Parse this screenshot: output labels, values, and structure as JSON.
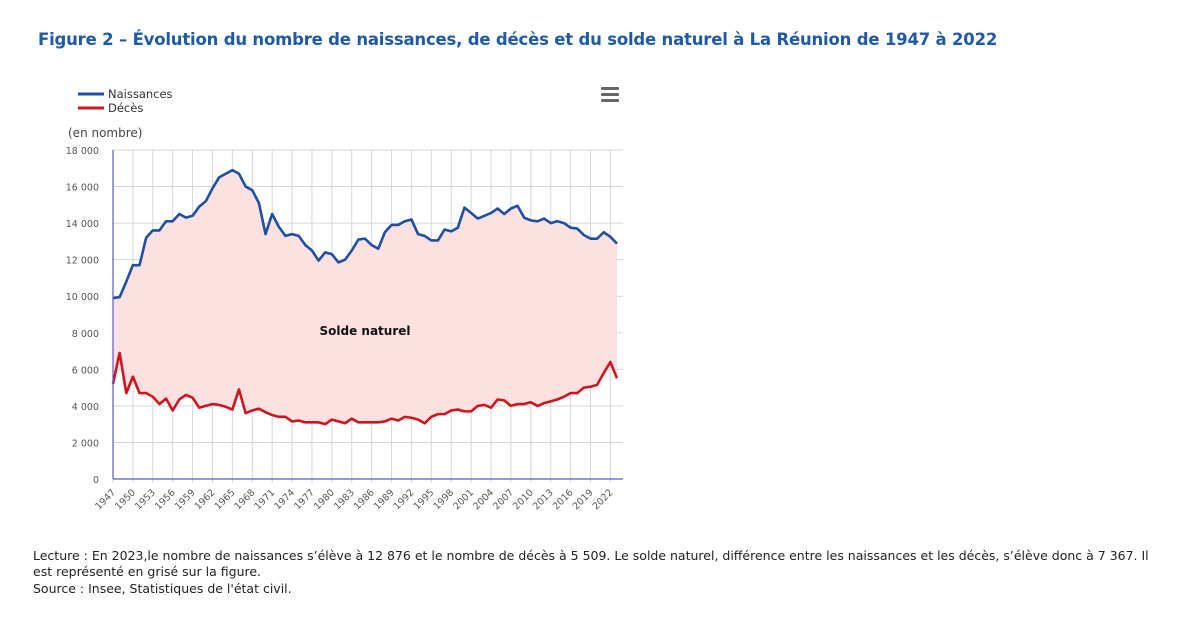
{
  "title": "Figure 2 – Évolution du nombre de naissances, de décès et du solde naturel à La Réunion de 1947 à 2022",
  "menu_icon": "hamburger-menu-icon",
  "note": "Lecture : En 2023,le nombre de naissances s’élève à 12 876 et le nombre de décès à 5 509. Le solde naturel, différence entre les naissances et les décès, s’élève donc à 7 367. Il est représenté en grisé sur la figure.",
  "source": "Source : Insee, Statistiques de l'état civil.",
  "chart_data": {
    "type": "line",
    "title": "Figure 2 – Évolution du nombre de naissances, de décès et du solde naturel à La Réunion de 1947 à 2022",
    "ylabel": "(en nombre)",
    "xlabel": "",
    "ylim": [
      0,
      18000
    ],
    "yticks": [
      "0",
      "2 000",
      "4 000",
      "6 000",
      "8 000",
      "10 000",
      "12 000",
      "14 000",
      "16 000",
      "18 000"
    ],
    "ytick_values": [
      0,
      2000,
      4000,
      6000,
      8000,
      10000,
      12000,
      14000,
      16000,
      18000
    ],
    "xticks": [
      "1947",
      "1950",
      "1953",
      "1956",
      "1959",
      "1962",
      "1965",
      "1968",
      "1971",
      "1974",
      "1977",
      "1980",
      "1983",
      "1986",
      "1989",
      "1992",
      "1995",
      "1998",
      "2001",
      "2004",
      "2007",
      "2010",
      "2013",
      "2016",
      "2019",
      "2022"
    ],
    "x_start": 1947,
    "x_end": 2023,
    "grid": true,
    "legend_position": "top-left",
    "area_label": "Solde naturel",
    "area_color": "#fde1e1",
    "series": [
      {
        "name": "Naissances",
        "color": "#1f4fa0",
        "values": [
          9900,
          9950,
          10800,
          11700,
          11700,
          13200,
          13600,
          13600,
          14100,
          14100,
          14500,
          14300,
          14400,
          14900,
          15200,
          15900,
          16500,
          16700,
          16900,
          16700,
          16000,
          15800,
          15100,
          13400,
          14500,
          13800,
          13300,
          13400,
          13300,
          12800,
          12500,
          11950,
          12400,
          12300,
          11850,
          12000,
          12500,
          13100,
          13150,
          12800,
          12600,
          13500,
          13900,
          13900,
          14100,
          14200,
          13400,
          13300,
          13050,
          13050,
          13650,
          13550,
          13750,
          14850,
          14550,
          14250,
          14400,
          14550,
          14800,
          14500,
          14800,
          14950,
          14300,
          14150,
          14100,
          14250,
          14000,
          14100,
          14000,
          13750,
          13700,
          13350,
          13150,
          13150,
          13500,
          13250,
          12876
        ]
      },
      {
        "name": "Décès",
        "color": "#d0141e",
        "values": [
          5200,
          6900,
          4700,
          5600,
          4700,
          4700,
          4500,
          4100,
          4400,
          3750,
          4350,
          4600,
          4450,
          3900,
          4000,
          4100,
          4050,
          3950,
          3800,
          4900,
          3600,
          3750,
          3850,
          3650,
          3500,
          3400,
          3400,
          3150,
          3200,
          3100,
          3100,
          3100,
          3000,
          3250,
          3150,
          3050,
          3300,
          3100,
          3100,
          3100,
          3100,
          3150,
          3300,
          3200,
          3400,
          3350,
          3250,
          3050,
          3400,
          3550,
          3550,
          3750,
          3800,
          3700,
          3700,
          4000,
          4050,
          3900,
          4350,
          4300,
          4000,
          4100,
          4100,
          4200,
          4000,
          4150,
          4250,
          4350,
          4500,
          4700,
          4700,
          5000,
          5050,
          5150,
          5800,
          6400,
          5509
        ]
      }
    ]
  }
}
